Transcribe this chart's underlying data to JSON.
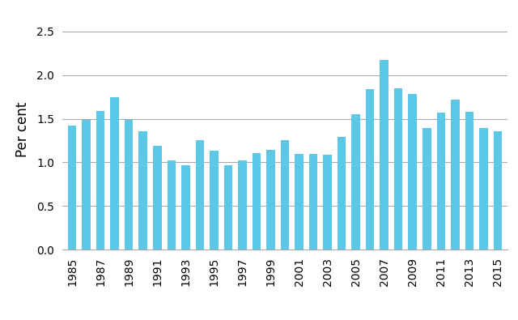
{
  "years": [
    1985,
    1986,
    1987,
    1988,
    1989,
    1990,
    1991,
    1992,
    1993,
    1994,
    1995,
    1996,
    1997,
    1998,
    1999,
    2000,
    2001,
    2002,
    2003,
    2004,
    2005,
    2006,
    2007,
    2008,
    2009,
    2010,
    2011,
    2012,
    2013,
    2014,
    2015
  ],
  "values": [
    1.42,
    1.49,
    1.59,
    1.75,
    1.49,
    1.36,
    1.19,
    1.02,
    0.97,
    1.25,
    1.13,
    0.97,
    1.02,
    1.11,
    1.14,
    1.25,
    1.1,
    1.1,
    1.09,
    1.29,
    1.55,
    1.84,
    2.17,
    1.85,
    1.78,
    1.39,
    1.57,
    1.72,
    1.58,
    1.39,
    1.36
  ],
  "bar_color": "#5BC8E8",
  "ylabel": "Per cent",
  "ylim": [
    0,
    2.75
  ],
  "yticks": [
    0.0,
    0.5,
    1.0,
    1.5,
    2.0,
    2.5
  ],
  "xtick_labels": [
    "1985",
    "1987",
    "1989",
    "1991",
    "1993",
    "1995",
    "1997",
    "1999",
    "2001",
    "2003",
    "2005",
    "2007",
    "2009",
    "2011",
    "2013",
    "2015"
  ],
  "xtick_years": [
    1985,
    1987,
    1989,
    1991,
    1993,
    1995,
    1997,
    1999,
    2001,
    2003,
    2005,
    2007,
    2009,
    2011,
    2013,
    2015
  ],
  "grid_color": "#aaaaaa",
  "background_color": "#ffffff",
  "ylabel_fontsize": 12,
  "tick_fontsize": 10,
  "bar_width": 0.6,
  "xlim": [
    1984.3,
    2015.7
  ]
}
